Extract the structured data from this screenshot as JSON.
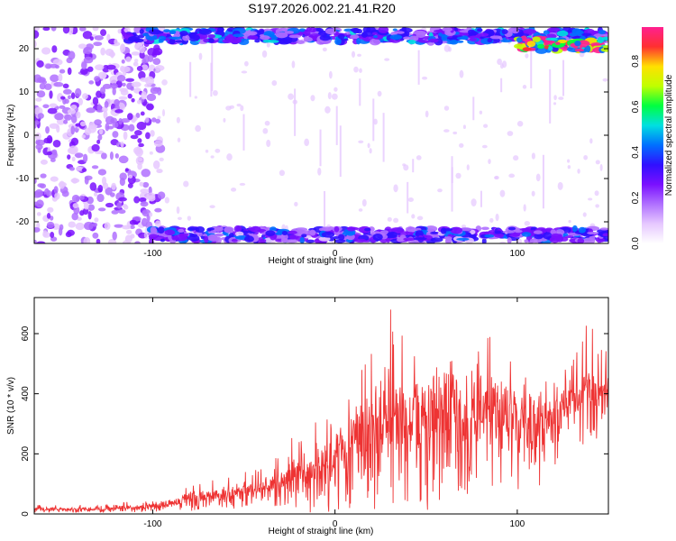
{
  "title": "S197.2026.002.21.41.R20",
  "colors": {
    "signal_line": "#ee3333",
    "colormap": [
      "#ffffff",
      "#e6c8ff",
      "#b070ff",
      "#7a10ff",
      "#3010ff",
      "#0070ff",
      "#00e0e0",
      "#00ff40",
      "#c0ff00",
      "#ffe000",
      "#ff3030",
      "#ff2090"
    ]
  },
  "chart_data": [
    {
      "type": "heatmap",
      "title": "S197.2026.002.21.41.R20",
      "xlabel": "Height of straight line (km)",
      "ylabel": "Frequency (Hz)",
      "xlim": [
        -165,
        150
      ],
      "ylim": [
        -25,
        25
      ],
      "xticks": [
        -100,
        0,
        100
      ],
      "yticks": [
        -20,
        -10,
        0,
        10,
        20
      ],
      "colorbar": {
        "label": "Normalized spectral amplitude",
        "range": [
          0.0,
          0.95
        ],
        "ticks": [
          0.0,
          0.2,
          0.4,
          0.6,
          0.8
        ]
      },
      "bands": [
        {
          "freq": 23,
          "x_start": -115,
          "x_end": 150,
          "amplitude": 0.35
        },
        {
          "freq": 21,
          "x_start": 100,
          "x_end": 150,
          "amplitude": 0.85
        },
        {
          "freq": -23,
          "x_start": -100,
          "x_end": 150,
          "amplitude": 0.3
        }
      ],
      "noise_region": {
        "x_start": -165,
        "x_end": -105,
        "freq_range": [
          -25,
          25
        ]
      }
    },
    {
      "type": "line",
      "xlabel": "Height of straight line (km)",
      "ylabel": "SNR (10 * v/v)",
      "xlim": [
        -165,
        150
      ],
      "ylim": [
        0,
        720
      ],
      "xticks": [
        -100,
        0,
        100
      ],
      "yticks": [
        0,
        200,
        400,
        600
      ],
      "series": [
        {
          "x": [
            -165,
            -150,
            -130,
            -115,
            -100,
            -90,
            -80,
            -70,
            -60,
            -50,
            -40,
            -30,
            -20,
            -10,
            0,
            10,
            20,
            30,
            40,
            50,
            60,
            70,
            80,
            90,
            100,
            110,
            120,
            130,
            140,
            150
          ],
          "envelope_low": [
            5,
            5,
            5,
            5,
            5,
            8,
            10,
            12,
            15,
            20,
            25,
            20,
            5,
            5,
            5,
            5,
            5,
            10,
            20,
            10,
            20,
            40,
            80,
            100,
            80,
            80,
            150,
            200,
            250,
            250
          ],
          "envelope_high": [
            30,
            30,
            30,
            40,
            50,
            70,
            90,
            110,
            130,
            150,
            160,
            250,
            280,
            310,
            380,
            470,
            560,
            720,
            580,
            640,
            680,
            600,
            620,
            580,
            560,
            480,
            520,
            560,
            660,
            580
          ],
          "values_mean": [
            18,
            18,
            18,
            20,
            30,
            40,
            55,
            60,
            70,
            80,
            80,
            120,
            140,
            160,
            220,
            280,
            320,
            380,
            360,
            380,
            400,
            380,
            400,
            380,
            360,
            340,
            380,
            400,
            420,
            430
          ]
        }
      ]
    }
  ]
}
